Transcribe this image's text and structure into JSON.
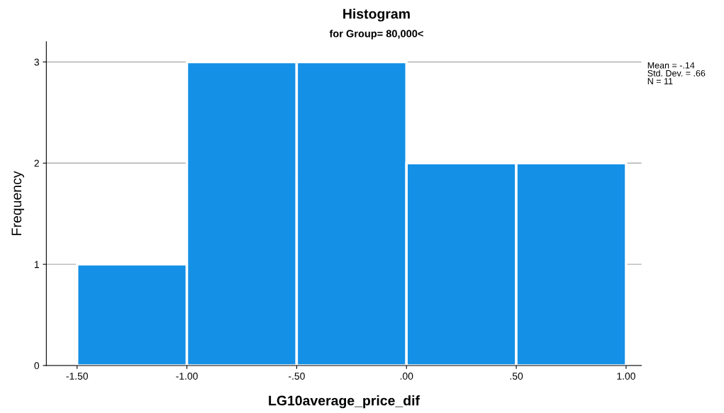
{
  "chart_data": {
    "type": "histogram",
    "title": "Histogram",
    "subtitle": "for Group= 80,000<",
    "xlabel": "LG10average_price_dif",
    "ylabel": "Frequency",
    "bins": [
      -1.5,
      -1.0,
      -0.5,
      0.0,
      0.5,
      1.0
    ],
    "values": [
      1,
      3,
      3,
      2,
      2
    ],
    "color": "#1490e6",
    "xlim": [
      -1.64,
      1.07
    ],
    "xticks": [
      {
        "value": -1.5,
        "label": "-1.50"
      },
      {
        "value": -1.0,
        "label": "-1.00"
      },
      {
        "value": -0.5,
        "label": "-.50"
      },
      {
        "value": 0.0,
        "label": ".00"
      },
      {
        "value": 0.5,
        "label": ".50"
      },
      {
        "value": 1.0,
        "label": "1.00"
      }
    ],
    "ylim": [
      0,
      3.2
    ],
    "yticks": [
      0,
      1,
      2,
      3
    ],
    "grid": "y",
    "annotations": [
      "Mean = -.14\nStd. Dev. = .66\nN = 11"
    ]
  }
}
